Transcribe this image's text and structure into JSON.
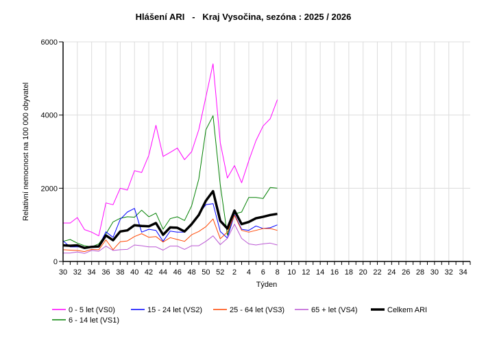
{
  "chart_data": {
    "type": "line",
    "title": "Hlášení ARI   -   Kraj Vysočina, sezóna : 2025 / 2026",
    "xlabel": "Týden",
    "ylabel": "Relativní nemocnost na 100 000 obyvatel",
    "ylim": [
      0,
      6000
    ],
    "yticks": [
      0,
      2000,
      4000,
      6000
    ],
    "x_weeks": [
      30,
      31,
      32,
      33,
      34,
      35,
      36,
      37,
      38,
      39,
      40,
      41,
      42,
      43,
      44,
      45,
      46,
      47,
      48,
      49,
      50,
      51,
      52,
      1,
      2,
      3,
      4,
      5,
      6,
      7,
      8,
      9,
      10,
      11,
      12,
      13,
      14,
      15,
      16,
      17,
      18,
      19,
      20,
      21,
      22,
      23,
      24,
      25,
      26,
      27,
      28,
      29,
      30,
      31,
      32,
      33,
      34,
      35
    ],
    "xtick_labels": [
      "30",
      "32",
      "34",
      "36",
      "38",
      "40",
      "42",
      "44",
      "46",
      "48",
      "50",
      "52",
      "2",
      "4",
      "6",
      "8",
      "10",
      "12",
      "14",
      "16",
      "18",
      "20",
      "22",
      "24",
      "26",
      "28",
      "30",
      "32",
      "34"
    ],
    "grid": true,
    "legend_position": "bottom",
    "series": [
      {
        "name": "0 - 5 let (VS0)",
        "color": "#ff00ff",
        "values": [
          1050,
          1050,
          1200,
          870,
          800,
          700,
          1600,
          1550,
          2000,
          1950,
          2480,
          2430,
          2900,
          3720,
          2870,
          2980,
          3100,
          2780,
          3000,
          3600,
          4500,
          5400,
          3250,
          2280,
          2620,
          2150,
          2750,
          3300,
          3700,
          3900,
          4420
        ]
      },
      {
        "name": "6 - 14 let (VS1)",
        "color": "#008000",
        "values": [
          550,
          600,
          500,
          430,
          400,
          480,
          750,
          1080,
          1180,
          1220,
          1210,
          1400,
          1220,
          1320,
          880,
          1170,
          1220,
          1120,
          1520,
          2250,
          3600,
          3980,
          2100,
          720,
          1300,
          1350,
          1750,
          1750,
          1720,
          2020,
          2000
        ]
      },
      {
        "name": "15 - 24 let (VS2)",
        "color": "#0000ff",
        "values": [
          560,
          400,
          400,
          390,
          380,
          420,
          810,
          660,
          1150,
          1350,
          1450,
          800,
          880,
          850,
          550,
          830,
          800,
          800,
          1040,
          1300,
          1550,
          1580,
          820,
          640,
          1280,
          880,
          850,
          970,
          900,
          920,
          1000
        ]
      },
      {
        "name": "25 - 64 let (VS3)",
        "color": "#ff4500",
        "values": [
          320,
          310,
          300,
          270,
          330,
          320,
          590,
          320,
          540,
          560,
          680,
          760,
          660,
          680,
          530,
          650,
          600,
          550,
          730,
          820,
          950,
          1160,
          620,
          800,
          1260,
          850,
          800,
          850,
          900,
          900,
          850
        ]
      },
      {
        "name": "65 + let (VS4)",
        "color": "#ba55d3",
        "values": [
          230,
          230,
          260,
          220,
          300,
          280,
          420,
          300,
          320,
          330,
          450,
          430,
          400,
          400,
          310,
          420,
          420,
          330,
          430,
          430,
          550,
          700,
          460,
          630,
          1020,
          630,
          480,
          450,
          480,
          500,
          450
        ]
      },
      {
        "name": "Celkem ARI",
        "color": "#000000",
        "values": [
          440,
          430,
          440,
          370,
          400,
          410,
          710,
          580,
          820,
          850,
          990,
          970,
          960,
          1050,
          730,
          930,
          920,
          820,
          1020,
          1270,
          1660,
          1920,
          1110,
          900,
          1390,
          1020,
          1080,
          1180,
          1220,
          1270,
          1300
        ]
      }
    ]
  }
}
